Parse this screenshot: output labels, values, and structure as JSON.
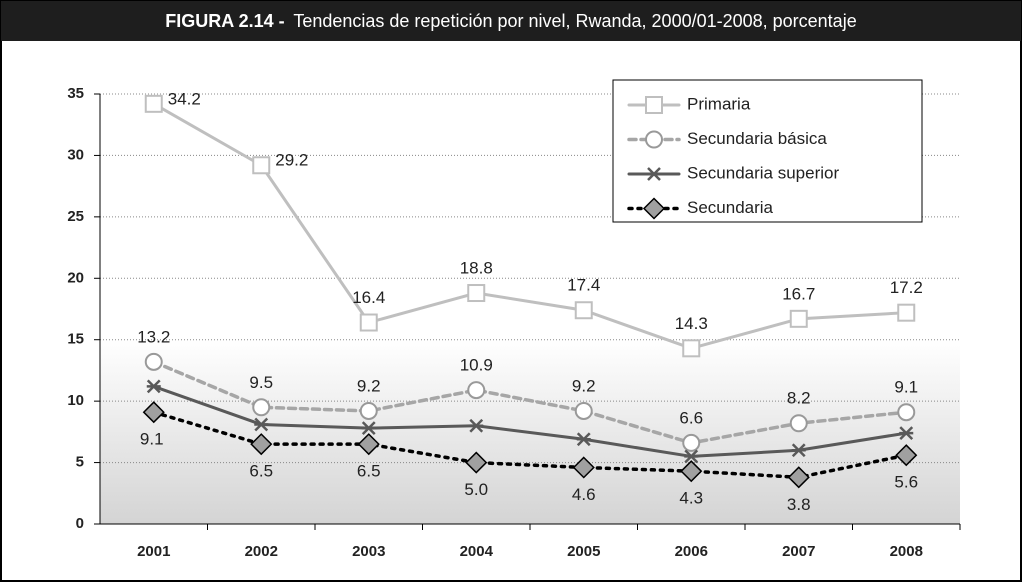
{
  "chart_data": {
    "type": "line",
    "title_label": "FIGURA 2.14 -",
    "title": "Tendencias de repetición por nivel, Rwanda, 2000/01-2008, porcentaje",
    "categories": [
      "2001",
      "2002",
      "2003",
      "2004",
      "2005",
      "2006",
      "2007",
      "2008"
    ],
    "ylim": [
      0,
      35
    ],
    "yticks": [
      0,
      5,
      10,
      15,
      20,
      25,
      30,
      35
    ],
    "grid": true,
    "legend": "upper right",
    "series": [
      {
        "name": "Primaria",
        "color": "#bfbfbf",
        "marker": "square",
        "line_style": "solid",
        "values": [
          34.2,
          29.2,
          16.4,
          18.8,
          17.4,
          14.3,
          16.7,
          17.2
        ]
      },
      {
        "name": "Secundaria básica",
        "color": "#a6a6a6",
        "marker": "circle",
        "line_style": "dashed",
        "values": [
          13.2,
          9.5,
          9.2,
          10.9,
          9.2,
          6.6,
          8.2,
          9.1
        ]
      },
      {
        "name": "Secundaria superior",
        "color": "#595959",
        "marker": "cross",
        "line_style": "solid",
        "values": [
          11.2,
          8.1,
          7.8,
          8.0,
          6.9,
          5.5,
          6.0,
          7.4
        ]
      },
      {
        "name": "Secundaria",
        "color": "#000000",
        "marker": "diamond",
        "line_style": "dotted",
        "values": [
          9.1,
          6.5,
          6.5,
          5.0,
          4.6,
          4.3,
          3.8,
          5.6
        ],
        "value_labels": [
          "9.1",
          "6.5",
          "6.5",
          "5.0",
          "4.6",
          "4.3",
          "3.8",
          "5.6"
        ]
      }
    ]
  }
}
